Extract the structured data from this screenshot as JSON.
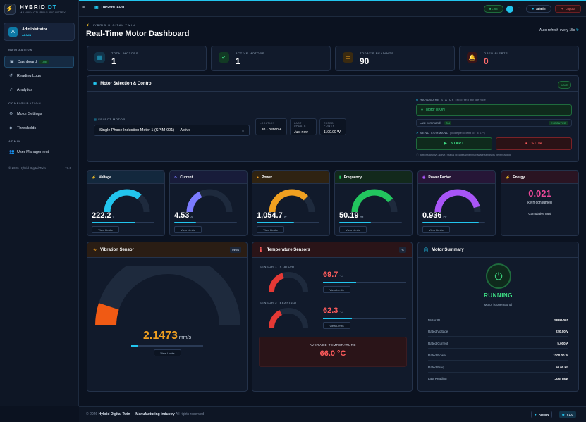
{
  "brand": {
    "name_a": "HYBRID",
    "name_b": "DT",
    "subtitle": "MANUFACTURING INDUSTRY"
  },
  "user": {
    "name": "Administrator",
    "role": "ADMIN",
    "avatar": "A"
  },
  "nav": {
    "section_navigation": "NAVIGATION",
    "dashboard": "Dashboard",
    "dashboard_badge": "LIVE",
    "reading_logs": "Reading Logs",
    "analytics": "Analytics",
    "section_configuration": "CONFIGURATION",
    "motor_settings": "Motor Settings",
    "thresholds": "Thresholds",
    "section_admin": "ADMIN",
    "user_management": "User Management"
  },
  "sidebar_footer": {
    "copyright": "© 2026 Hybrid Digital Twin",
    "version": "v1.0"
  },
  "topbar": {
    "breadcrumb": "DASHBOARD",
    "live": "● LIVE",
    "admin": "admin",
    "logout": "Logout"
  },
  "header": {
    "tag": "HYBRID DIGITAL TWIN",
    "title": "Real-Time Motor Dashboard",
    "auto_refresh": "Auto-refresh every 15s"
  },
  "stats": [
    {
      "label": "TOTAL MOTORS",
      "value": "1",
      "color": "#22c5ee"
    },
    {
      "label": "ACTIVE MOTORS",
      "value": "1",
      "color": "#3ddc84"
    },
    {
      "label": "TODAY'S READINGS",
      "value": "90",
      "color": "#f0a020"
    },
    {
      "label": "OPEN ALERTS",
      "value": "0",
      "color": "#ff5c5c"
    }
  ],
  "control": {
    "title": "Motor Selection & Control",
    "live": "LIVE",
    "select_label": "SELECT MOTOR",
    "selected_motor": "Single Phase Induction Motor 1 (SPIM-001) — Active",
    "location_label": "LOCATION",
    "location": "Lab - Bench A",
    "last_update_label": "LAST UPDATE",
    "last_update": "Just now",
    "rated_power_label": "RATED POWER",
    "rated_power": "1100.00 W",
    "hw_status_label": "HARDWARE STATUS",
    "hw_status_note": "reported by device",
    "hw_status": "Motor is ON",
    "last_command_label": "Last command:",
    "last_command": "ON",
    "last_command_state": "EXECUTED",
    "send_command_label": "SEND COMMAND",
    "send_command_note": "(independent of ESP)",
    "start": "START",
    "stop": "STOP",
    "note": "Buttons always active. Status updates when hardware sends its next reading."
  },
  "metrics": [
    {
      "name": "Voltage",
      "value": "222.2",
      "unit": "V",
      "fraction": 0.72,
      "color": "#22c5ee",
      "bar": 0.7,
      "head": "#13283d",
      "icon": "⚡"
    },
    {
      "name": "Current",
      "value": "4.53",
      "unit": "A",
      "fraction": 0.35,
      "color": "#7b7bff",
      "bar": 0.35,
      "head": "#181c3a",
      "icon": "∿"
    },
    {
      "name": "Power",
      "value": "1,054.7",
      "unit": "W",
      "fraction": 0.75,
      "color": "#f0a020",
      "bar": 0.6,
      "head": "#2f2312",
      "icon": "●"
    },
    {
      "name": "Frequency",
      "value": "50.19",
      "unit": "Hz",
      "fraction": 0.8,
      "color": "#22c55e",
      "bar": 0.5,
      "head": "#12291c",
      "icon": "▮"
    },
    {
      "name": "Power Factor",
      "value": "0.936",
      "unit": "PF",
      "fraction": 0.92,
      "color": "#a855f7",
      "bar": 0.9,
      "head": "#261637",
      "icon": "◉"
    }
  ],
  "energy": {
    "title": "Energy",
    "value": "0.021",
    "unit": "kWh consumed",
    "note": "Cumulative total"
  },
  "view_limits": "View Limits",
  "vibration": {
    "title": "Vibration Sensor",
    "unit_badge": "mm/s",
    "value": "2.1473",
    "unit": "mm/s",
    "fraction": 0.1,
    "bar": 0.1
  },
  "temperature": {
    "title": "Temperature Sensors",
    "unit_badge": "°C",
    "s1_label": "SENSOR 1 (STATOR)",
    "s1_value": "69.7",
    "s1_fraction": 0.4,
    "s2_label": "SENSOR 2 (BEARING)",
    "s2_value": "62.3",
    "s2_fraction": 0.35,
    "unit": "°C",
    "avg_label": "AVERAGE TEMPERATURE",
    "avg_value": "66.0 °C"
  },
  "summary": {
    "title": "Motor Summary",
    "status": "RUNNING",
    "status_note": "Motor is operational",
    "rows": [
      {
        "k": "Motor ID",
        "v": "SPIM-001"
      },
      {
        "k": "Rated Voltage",
        "v": "220.00 V"
      },
      {
        "k": "Rated Current",
        "v": "5.000 A"
      },
      {
        "k": "Rated Power",
        "v": "1100.00 W"
      },
      {
        "k": "Rated Freq",
        "v": "50.00 Hz"
      },
      {
        "k": "Last Reading",
        "v": "Just now"
      }
    ]
  },
  "footer": {
    "year": "© 2026",
    "product": "Hybrid Digital Twin — Manufacturing Industry",
    "rights": "All rights reserved",
    "admin": "ADMIN",
    "version": "V1.0"
  }
}
